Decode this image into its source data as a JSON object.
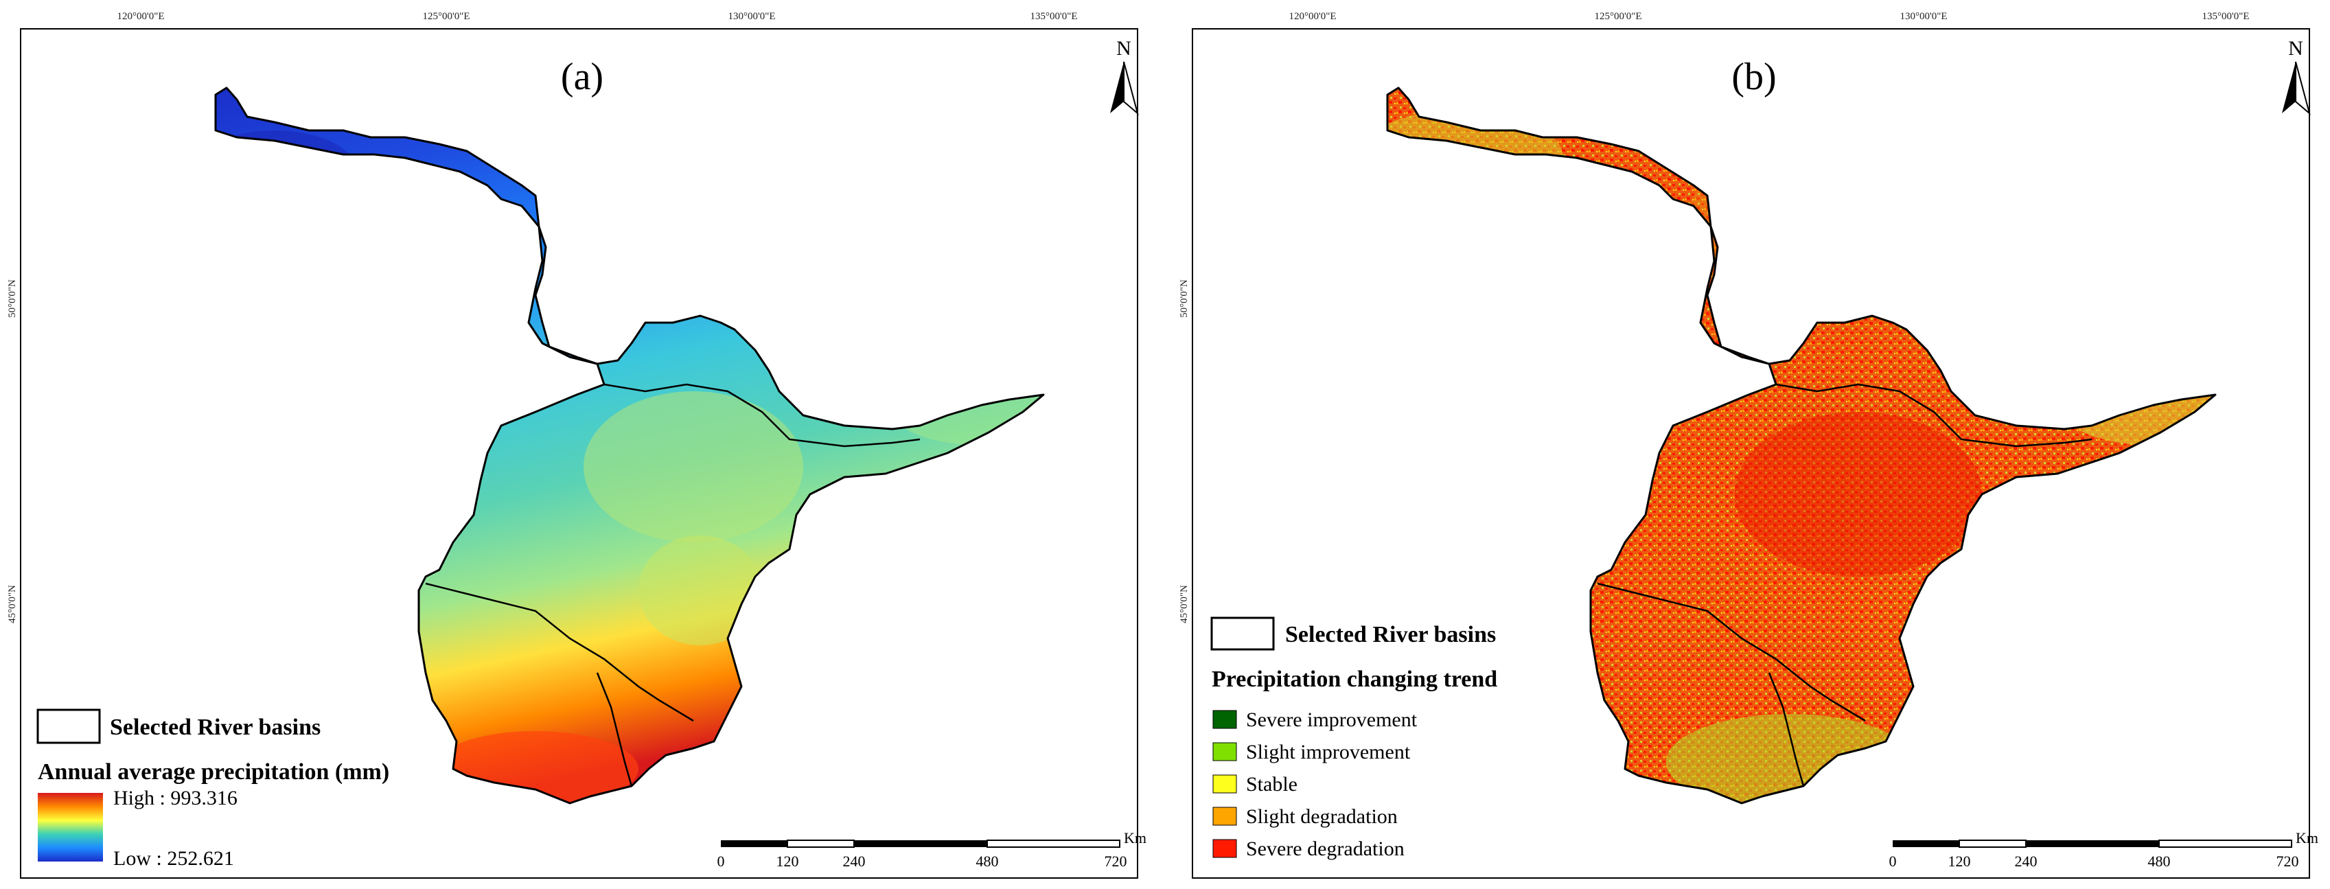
{
  "panel_a": {
    "label": "(a)",
    "north": "N",
    "lon_ticks": [
      "120°00'0\"E",
      "125°00'0\"E",
      "130°00'0\"E",
      "135°00'0\"E"
    ],
    "lat_ticks": [
      "50°0'0\"N",
      "45°0'0\"N"
    ],
    "legend_basin": "Selected River basins",
    "legend_title": "Annual average precipitation (mm)",
    "high_label": "High : 993.316",
    "low_label": "Low : 252.621",
    "ramp_colors": [
      "#d7191c",
      "#ff8a00",
      "#ffff3c",
      "#3cd2b4",
      "#1e8cff",
      "#1a2dc8"
    ],
    "scale_labels": [
      "0",
      "120",
      "240",
      "480",
      "720"
    ],
    "scale_unit": "Km"
  },
  "panel_b": {
    "label": "(b)",
    "north": "N",
    "lon_ticks": [
      "120°00'0\"E",
      "125°00'0\"E",
      "130°00'0\"E",
      "135°00'0\"E"
    ],
    "lat_ticks": [
      "50°0'0\"N",
      "45°0'0\"N"
    ],
    "legend_basin": "Selected River basins",
    "legend_title": "Precipitation changing trend",
    "classes": [
      {
        "label": "Severe improvement",
        "color": "#006400"
      },
      {
        "label": "Slight improvement",
        "color": "#7fe000"
      },
      {
        "label": "Stable",
        "color": "#ffff1e"
      },
      {
        "label": "Slight degradation",
        "color": "#ffa500"
      },
      {
        "label": "Severe degradation",
        "color": "#ff1a00"
      }
    ],
    "scale_labels": [
      "0",
      "120",
      "240",
      "480",
      "720"
    ],
    "scale_unit": "Km"
  }
}
